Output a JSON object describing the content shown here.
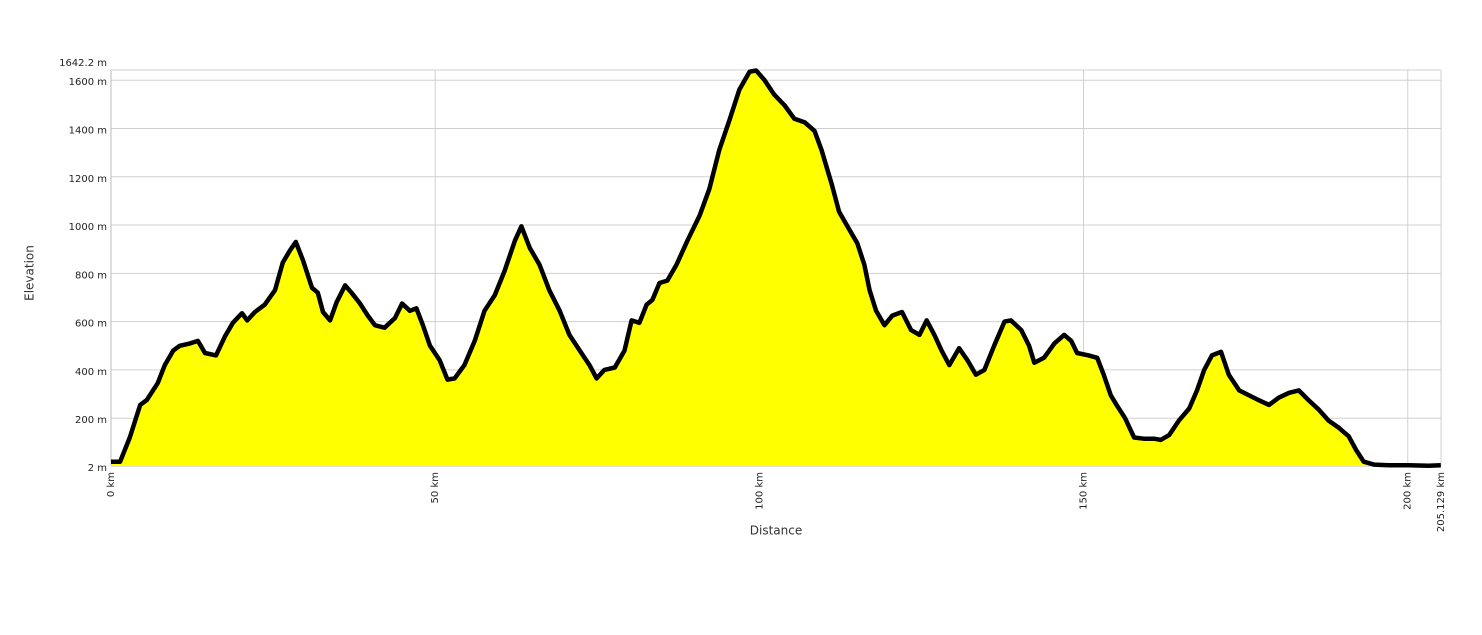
{
  "chart_data": {
    "type": "area",
    "xlabel": "Distance",
    "ylabel": "Elevation",
    "color": "#ffff00",
    "line_color": "#000000",
    "grid": true,
    "xlim": [
      0,
      205.129
    ],
    "xticks": [
      {
        "value": 0,
        "label": "0 km"
      },
      {
        "value": 50,
        "label": "50 km"
      },
      {
        "value": 100,
        "label": "100 km"
      },
      {
        "value": 150,
        "label": "150 km"
      },
      {
        "value": 200,
        "label": "200 km"
      },
      {
        "value": 205.129,
        "label": "205.129 km"
      }
    ],
    "ylim": [
      2,
      1642.2
    ],
    "yticks": [
      {
        "value": 2,
        "label": "2 m"
      },
      {
        "value": 200,
        "label": "200 m"
      },
      {
        "value": 400,
        "label": "400 m"
      },
      {
        "value": 600,
        "label": "600 m"
      },
      {
        "value": 800,
        "label": "800 m"
      },
      {
        "value": 1000,
        "label": "1000 m"
      },
      {
        "value": 1200,
        "label": "1200 m"
      },
      {
        "value": 1400,
        "label": "1400 m"
      },
      {
        "value": 1600,
        "label": "1600 m"
      },
      {
        "value": 1642.2,
        "label": "1642.2 m"
      }
    ],
    "x": [
      0,
      1.4,
      2.9,
      4.5,
      5.5,
      7.2,
      8.3,
      9.6,
      10.6,
      12.2,
      13.4,
      14.5,
      16.2,
      17.6,
      18.8,
      20.2,
      21,
      22.2,
      23.7,
      25.3,
      26.5,
      27.6,
      28.5,
      29.6,
      31,
      31.9,
      32.7,
      33.8,
      34.8,
      36.1,
      37.1,
      38.4,
      39.6,
      40.7,
      42.2,
      43.8,
      44.9,
      46.1,
      47.1,
      48.1,
      49.2,
      50.7,
      51.9,
      53,
      54.5,
      56.1,
      57.6,
      59.2,
      60.7,
      62.3,
      63.3,
      64.6,
      66.1,
      67.6,
      69.2,
      70.7,
      72.3,
      73.8,
      74.9,
      76.1,
      77.7,
      79.2,
      80.3,
      81.5,
      82.6,
      83.5,
      84.6,
      85.8,
      87.2,
      88.9,
      90.8,
      92.3,
      93.8,
      95.4,
      96.9,
      98.5,
      99.5,
      100.8,
      102.3,
      103.9,
      105.4,
      107,
      108.5,
      109.6,
      111.2,
      112.3,
      113.9,
      115.1,
      116.2,
      117,
      118,
      119.3,
      120.5,
      122,
      123.4,
      124.7,
      125.8,
      127,
      128.1,
      129.3,
      130.8,
      132.1,
      133.4,
      134.7,
      136.2,
      137.8,
      138.8,
      140.4,
      141.6,
      142.4,
      143.9,
      145.5,
      147,
      148.1,
      149,
      150.8,
      152.1,
      153.1,
      154.2,
      155.1,
      156.4,
      157.8,
      159.3,
      160.9,
      161.9,
      163.2,
      164.7,
      166.3,
      167.5,
      168.6,
      169.8,
      171.2,
      172.4,
      174,
      175.5,
      177,
      178.6,
      180.1,
      181.7,
      183.2,
      184.7,
      186.3,
      187.8,
      189.4,
      190.9,
      192,
      193.2,
      194.8,
      197.1,
      200.2,
      203.2,
      205.1
    ],
    "y": [
      20,
      20,
      120,
      255,
      275,
      345,
      420,
      480,
      500,
      510,
      520,
      470,
      460,
      540,
      595,
      635,
      605,
      640,
      670,
      730,
      845,
      895,
      930,
      855,
      740,
      720,
      640,
      605,
      680,
      750,
      720,
      675,
      625,
      585,
      575,
      615,
      675,
      645,
      655,
      585,
      500,
      440,
      360,
      365,
      420,
      520,
      645,
      710,
      810,
      935,
      995,
      905,
      835,
      730,
      645,
      545,
      480,
      420,
      365,
      400,
      410,
      480,
      605,
      595,
      670,
      690,
      760,
      770,
      835,
      935,
      1040,
      1150,
      1310,
      1435,
      1560,
      1635,
      1640,
      1600,
      1540,
      1495,
      1440,
      1425,
      1390,
      1310,
      1165,
      1055,
      980,
      925,
      835,
      730,
      645,
      585,
      625,
      640,
      565,
      545,
      605,
      545,
      480,
      420,
      490,
      440,
      380,
      400,
      500,
      600,
      605,
      565,
      500,
      430,
      450,
      510,
      545,
      520,
      470,
      460,
      450,
      380,
      295,
      255,
      200,
      120,
      115,
      115,
      110,
      130,
      190,
      240,
      315,
      400,
      460,
      475,
      380,
      315,
      295,
      275,
      255,
      285,
      305,
      315,
      275,
      235,
      190,
      160,
      125,
      70,
      20,
      8,
      5,
      5,
      3,
      5
    ]
  }
}
